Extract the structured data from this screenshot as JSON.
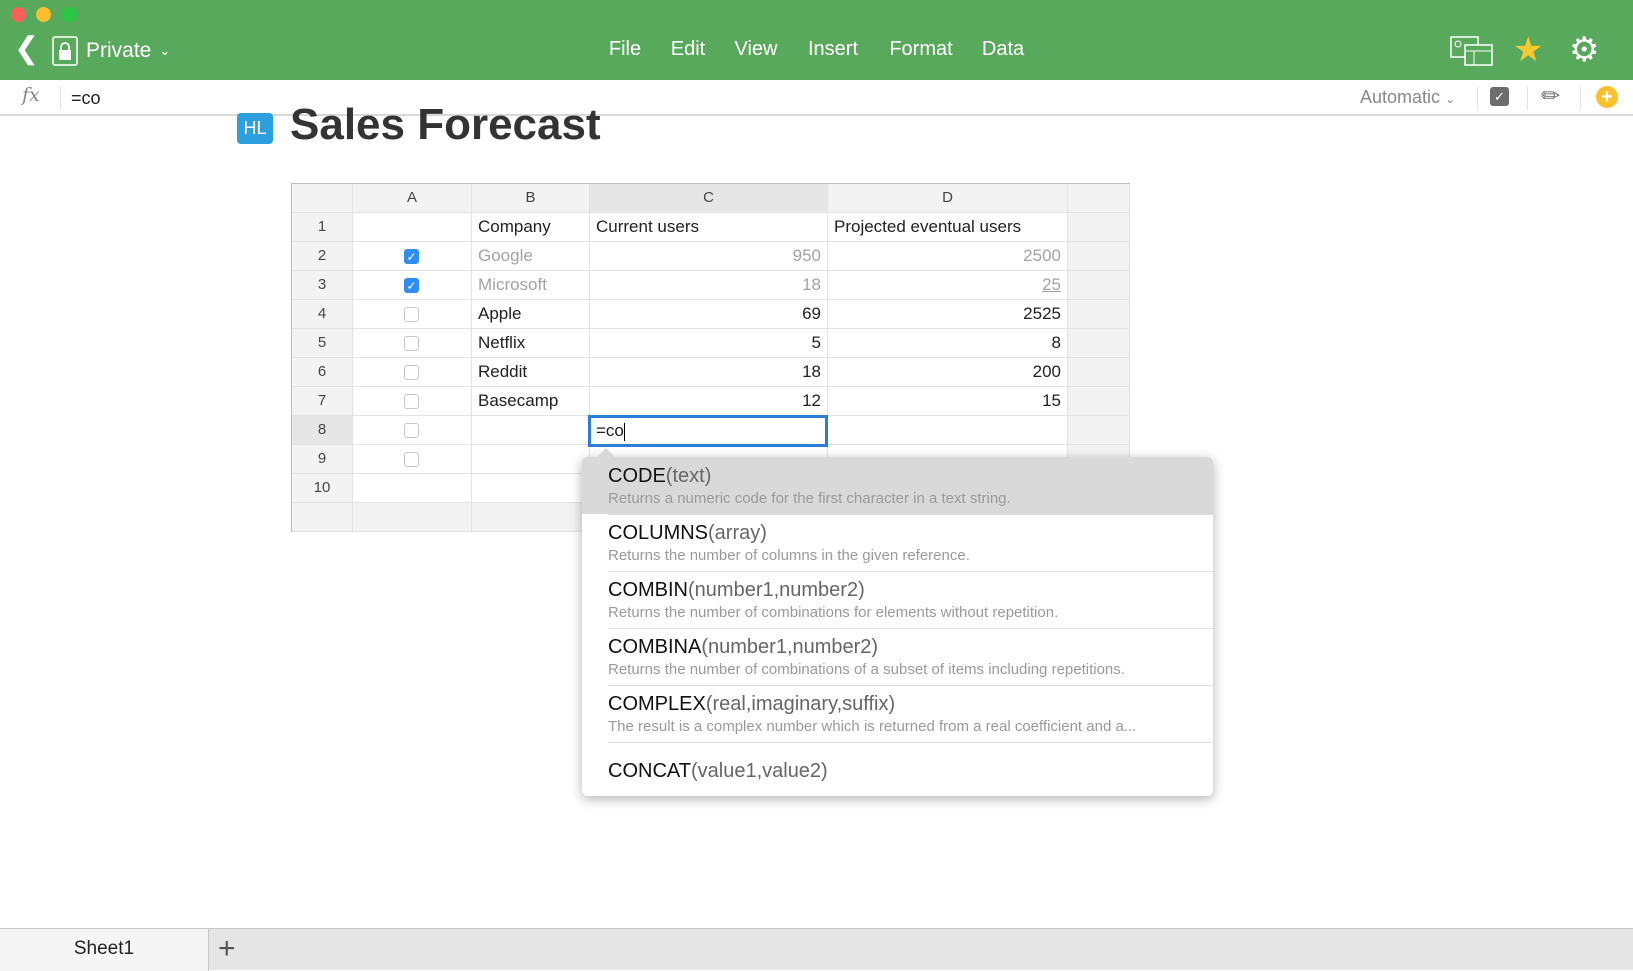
{
  "window": {
    "controls": {
      "close": "#fe5f57",
      "minimize": "#febc2e",
      "zoom": "#28c840"
    }
  },
  "header": {
    "back_icon": "chevron-left-icon",
    "location": "Private",
    "menu": [
      "File",
      "Edit",
      "View",
      "Insert",
      "Format",
      "Data"
    ],
    "brand_color": "#59a95c"
  },
  "formula_bar": {
    "fx_label": "fx",
    "value": "=co",
    "format": "Automatic"
  },
  "document": {
    "icon_text": "HL",
    "title": "Sales Forecast"
  },
  "sheet": {
    "columns": [
      "A",
      "B",
      "C",
      "D"
    ],
    "rows": [
      {
        "num": "1",
        "checkbox": null,
        "b": "Company",
        "c": "Current users",
        "d": "Projected eventual users"
      },
      {
        "num": "2",
        "checkbox": true,
        "b": "Google",
        "c": "950",
        "d": "2500"
      },
      {
        "num": "3",
        "checkbox": true,
        "b": "Microsoft",
        "c": "18",
        "d": "25"
      },
      {
        "num": "4",
        "checkbox": false,
        "b": "Apple",
        "c": "69",
        "d": "2525"
      },
      {
        "num": "5",
        "checkbox": false,
        "b": "Netflix",
        "c": "5",
        "d": "8"
      },
      {
        "num": "6",
        "checkbox": false,
        "b": "Reddit",
        "c": "18",
        "d": "200"
      },
      {
        "num": "7",
        "checkbox": false,
        "b": "Basecamp",
        "c": "12",
        "d": "15"
      },
      {
        "num": "8",
        "checkbox": false,
        "b": "",
        "c": "",
        "d": ""
      },
      {
        "num": "9",
        "checkbox": false,
        "b": "",
        "c": "",
        "d": ""
      },
      {
        "num": "10",
        "checkbox": null,
        "b": "",
        "c": "",
        "d": ""
      }
    ],
    "editing_cell": {
      "ref": "C8",
      "value": "=co"
    }
  },
  "autocomplete": [
    {
      "name": "CODE",
      "args": "(text)",
      "desc": "Returns a numeric code for the first character in a text string."
    },
    {
      "name": "COLUMNS",
      "args": "(array)",
      "desc": "Returns the number of columns in the given reference."
    },
    {
      "name": "COMBIN",
      "args": "(number1,number2)",
      "desc": "Returns the number of combinations for elements without repetition."
    },
    {
      "name": "COMBINA",
      "args": "(number1,number2)",
      "desc": "Returns the number of combinations of a subset of items including repetitions."
    },
    {
      "name": "COMPLEX",
      "args": "(real,imaginary,suffix)",
      "desc": "The result is a complex number which is returned from a real coefficient and a..."
    },
    {
      "name": "CONCAT",
      "args": "(value1,value2)",
      "desc": ""
    }
  ],
  "tabs": {
    "sheets": [
      "Sheet1"
    ],
    "add_icon": "plus-icon"
  }
}
